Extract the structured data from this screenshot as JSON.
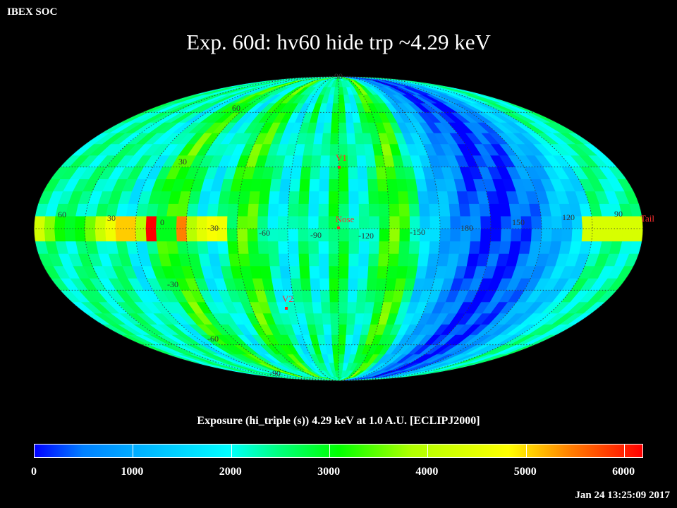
{
  "header": {
    "org": "IBEX SOC",
    "title": "Exp.   60d: hv60 hide trp ~4.29 keV"
  },
  "map": {
    "projection": "Mollweide",
    "longitude_labels": [
      "60",
      "30",
      "0",
      "-30",
      "-60",
      "-90",
      "-120",
      "-150",
      "180",
      "150",
      "120",
      "90"
    ],
    "latitude_labels": [
      "90",
      "60",
      "30",
      "-30",
      "-60",
      "-90"
    ],
    "markers": [
      {
        "label": "V1",
        "lon": -95,
        "lat": 35
      },
      {
        "label": "Nose",
        "lon": -95,
        "lat": 0
      },
      {
        "label": "V2",
        "lon": -73,
        "lat": -34
      },
      {
        "label": "Tail",
        "lon": 85,
        "lat": 0
      }
    ],
    "band_note_colors": {
      "low": "#0000ff",
      "mid": "#00ff00",
      "high": "#ff0000"
    }
  },
  "colorbar": {
    "label": "Exposure (hi_triple (s))  4.29 keV at 1.0 A.U. [ECLIPJ2000]",
    "min": 0,
    "max": 6200,
    "ticks": [
      "0",
      "1000",
      "2000",
      "3000",
      "4000",
      "5000",
      "6000"
    ]
  },
  "footer": {
    "timestamp": "Jan 24 13:25:09 2017"
  }
}
